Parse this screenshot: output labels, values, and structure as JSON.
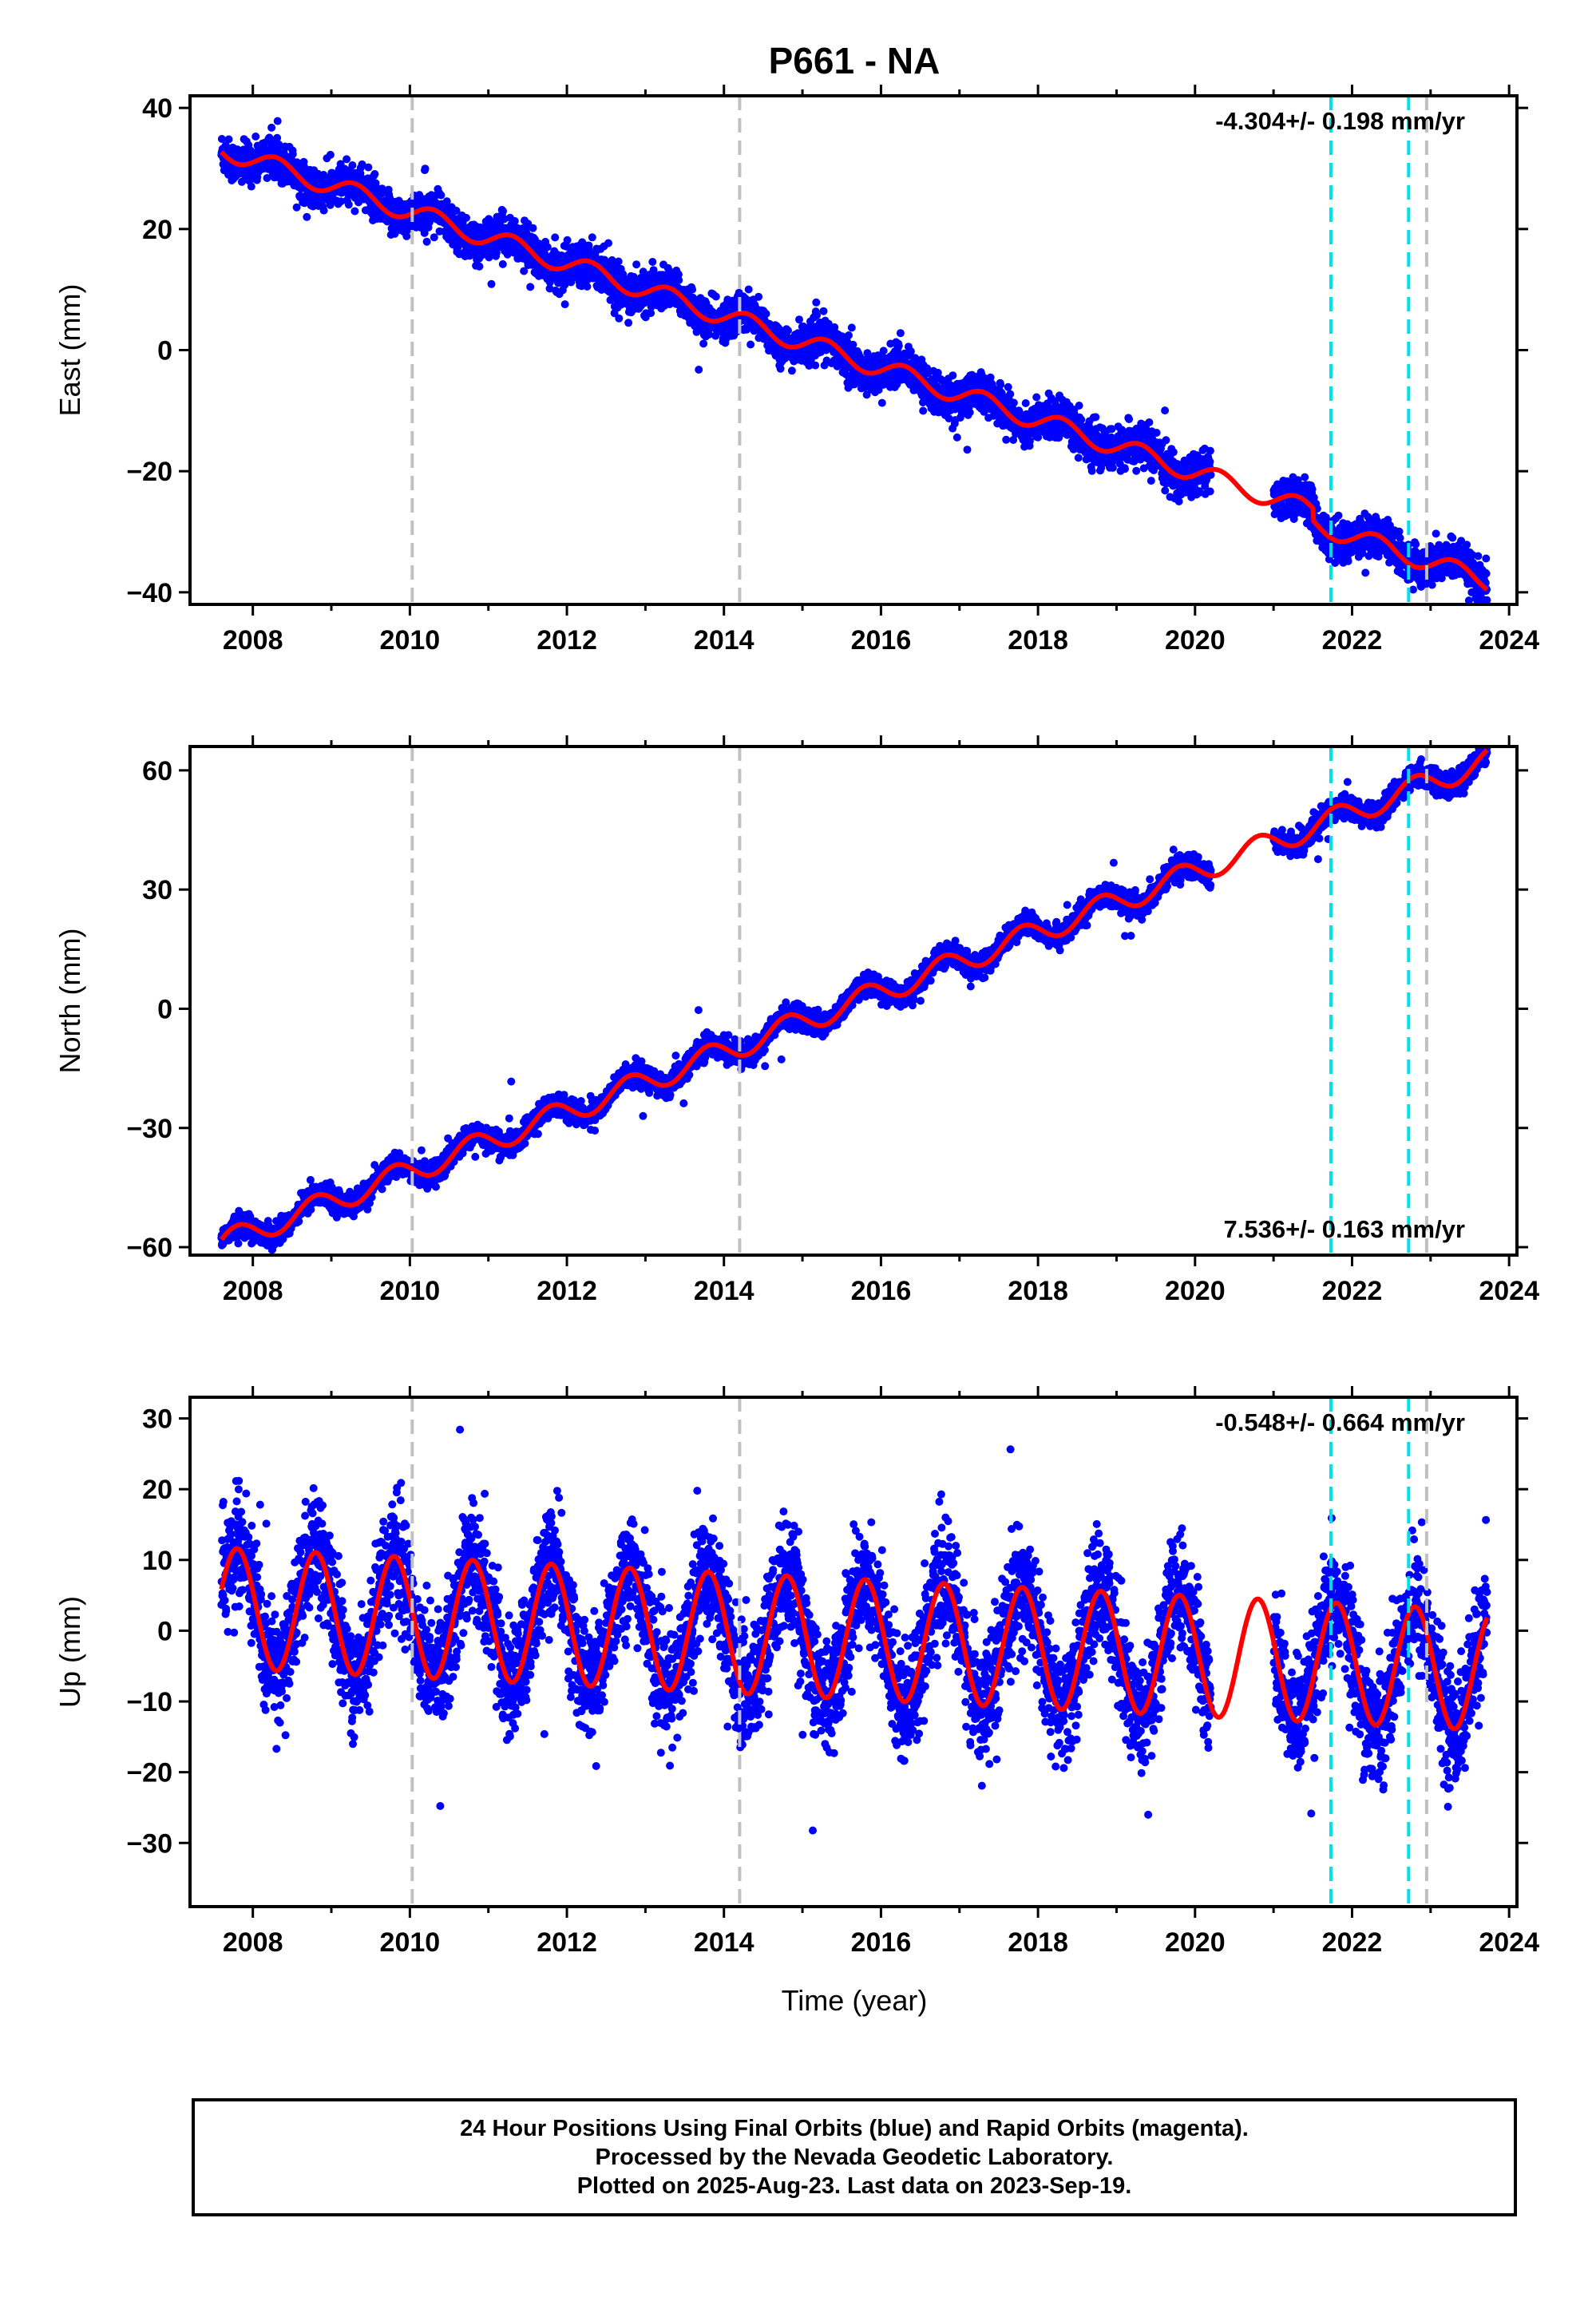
{
  "title": "P661 - NA",
  "xlabel": "Time (year)",
  "footer": {
    "line1": "24 Hour Positions Using Final Orbits (blue) and Rapid Orbits (magenta).",
    "line2": "Processed by the Nevada Geodetic Laboratory.",
    "line3": "Plotted on 2025-Aug-23. Last data on 2023-Sep-19."
  },
  "colors": {
    "data": "#0000ff",
    "model": "#ff0000",
    "gray_line": "#c0c0c0",
    "cyan_line": "#00e0e8",
    "frame": "#000000"
  },
  "chart_data": [
    {
      "type": "scatter",
      "component": "east",
      "ylabel": "East (mm)",
      "rate_label": "-4.304+/- 0.198 mm/yr",
      "rate_position": "top-right",
      "xlim": [
        2007.2,
        2024.1
      ],
      "ylim": [
        -42,
        42
      ],
      "xticks": [
        2008,
        2010,
        2012,
        2014,
        2016,
        2018,
        2020,
        2022,
        2024
      ],
      "yticks": [
        -40,
        -20,
        0,
        20,
        40
      ],
      "data_start": 2007.6,
      "data_end": 2023.72,
      "gap": [
        2020.2,
        2021.0
      ],
      "trend": {
        "intercept_2008": 31.5,
        "rate": -4.304,
        "annual_amp": 1.6,
        "phase": 0.05,
        "offset_after_2021_5": 2.0
      },
      "scatter_noise": 1.6,
      "equipment_changes": [
        2010.03,
        2014.2,
        2022.95
      ],
      "earthquakes": [
        2021.73,
        2022.72
      ]
    },
    {
      "type": "scatter",
      "component": "north",
      "ylabel": "North (mm)",
      "rate_label": "7.536+/- 0.163 mm/yr",
      "rate_position": "bottom-right",
      "xlim": [
        2007.2,
        2024.1
      ],
      "ylim": [
        -62,
        66
      ],
      "xticks": [
        2008,
        2010,
        2012,
        2014,
        2016,
        2018,
        2020,
        2022,
        2024
      ],
      "yticks": [
        -60,
        -30,
        0,
        30,
        60
      ],
      "data_start": 2007.6,
      "data_end": 2023.72,
      "gap": [
        2020.2,
        2021.0
      ],
      "trend": {
        "intercept_2008": -56.0,
        "rate": 7.536,
        "annual_amp": 3.0,
        "phase": 0.55,
        "offset_after_2021_5": 0.0
      },
      "scatter_noise": 1.4,
      "equipment_changes": [
        2010.03,
        2014.2,
        2022.95
      ],
      "earthquakes": [
        2021.73,
        2022.72
      ]
    },
    {
      "type": "scatter",
      "component": "up",
      "ylabel": "Up (mm)",
      "rate_label": "-0.548+/- 0.664 mm/yr",
      "rate_position": "top-right",
      "xlim": [
        2007.2,
        2024.1
      ],
      "ylim": [
        -39,
        33
      ],
      "xticks": [
        2008,
        2010,
        2012,
        2014,
        2016,
        2018,
        2020,
        2022,
        2024
      ],
      "yticks": [
        -30,
        -20,
        -10,
        0,
        10,
        20,
        30
      ],
      "data_start": 2007.6,
      "data_end": 2023.72,
      "gap": [
        2020.2,
        2021.0
      ],
      "trend": {
        "intercept_2008": 3.0,
        "rate": -0.548,
        "annual_amp": 8.5,
        "phase": 0.55,
        "offset_after_2021_5": 0.0
      },
      "scatter_noise": 4.0,
      "equipment_changes": [
        2010.03,
        2014.2,
        2022.95
      ],
      "earthquakes": [
        2021.73,
        2022.72
      ]
    }
  ]
}
